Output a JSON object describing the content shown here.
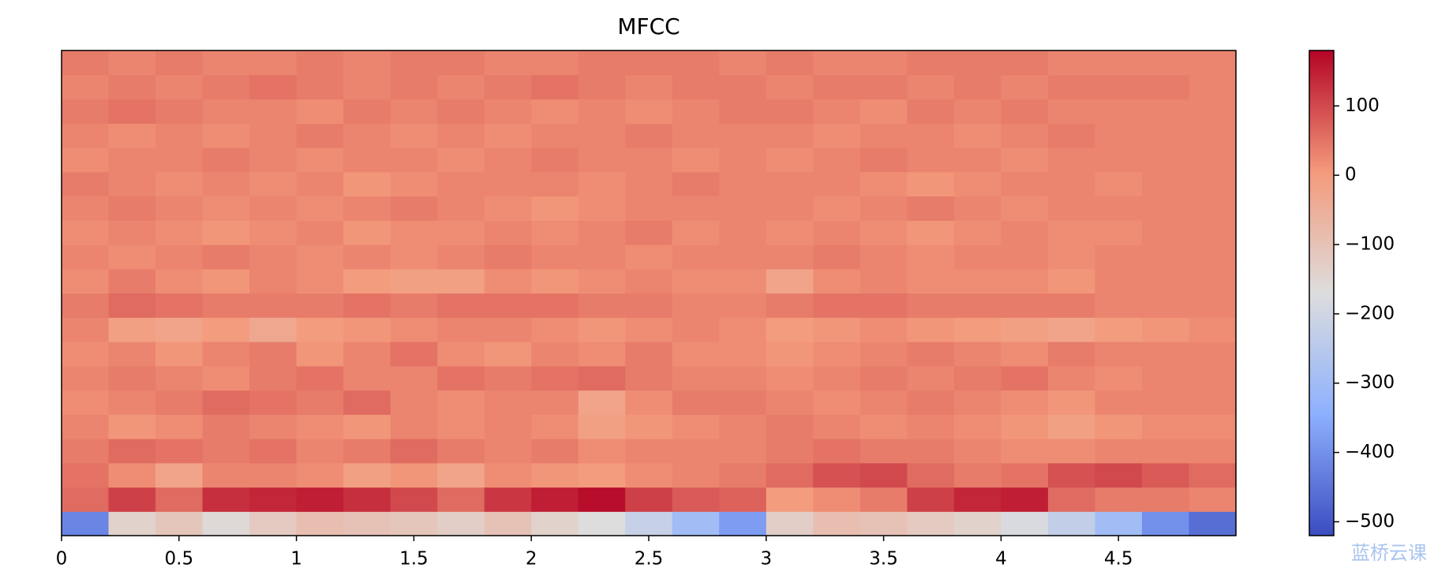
{
  "chart_data": {
    "type": "heatmap",
    "title": "MFCC",
    "colormap": "coolwarm",
    "xlim": [
      0,
      5
    ],
    "xticks": [
      0,
      0.5,
      1,
      1.5,
      2,
      2.5,
      3,
      3.5,
      4,
      4.5
    ],
    "clim": [
      -520,
      180
    ],
    "cticks": [
      {
        "value": -500,
        "label": "−500"
      },
      {
        "value": -400,
        "label": "−400"
      },
      {
        "value": -300,
        "label": "−300"
      },
      {
        "value": -200,
        "label": "−200"
      },
      {
        "value": -100,
        "label": "−100"
      },
      0,
      100
    ],
    "watermark": "蓝桥云课",
    "z": [
      [
        -420,
        -140,
        -110,
        -160,
        -120,
        -90,
        -100,
        -110,
        -130,
        -100,
        -140,
        -170,
        -220,
        -300,
        -380,
        -130,
        -90,
        -100,
        -120,
        -140,
        -180,
        -230,
        -300,
        -400,
        -460
      ],
      [
        60,
        110,
        60,
        130,
        140,
        150,
        130,
        100,
        60,
        120,
        150,
        170,
        110,
        80,
        70,
        0,
        20,
        40,
        110,
        140,
        150,
        60,
        40,
        40,
        30
      ],
      [
        50,
        20,
        -20,
        30,
        30,
        20,
        -10,
        10,
        -20,
        20,
        10,
        0,
        20,
        30,
        40,
        60,
        90,
        100,
        60,
        40,
        50,
        90,
        100,
        80,
        60
      ],
      [
        40,
        60,
        50,
        40,
        50,
        30,
        40,
        60,
        40,
        30,
        40,
        20,
        30,
        30,
        30,
        40,
        50,
        40,
        40,
        30,
        20,
        20,
        30,
        30,
        30
      ],
      [
        30,
        10,
        20,
        40,
        30,
        20,
        10,
        30,
        20,
        30,
        20,
        -10,
        10,
        20,
        30,
        40,
        30,
        20,
        30,
        20,
        10,
        -10,
        10,
        20,
        20
      ],
      [
        20,
        30,
        40,
        60,
        50,
        40,
        60,
        30,
        20,
        30,
        30,
        -20,
        20,
        40,
        40,
        30,
        20,
        30,
        40,
        30,
        20,
        10,
        30,
        30,
        30
      ],
      [
        30,
        40,
        30,
        20,
        40,
        50,
        30,
        30,
        50,
        40,
        50,
        60,
        40,
        30,
        30,
        20,
        30,
        40,
        30,
        40,
        50,
        30,
        20,
        30,
        30
      ],
      [
        20,
        30,
        10,
        30,
        40,
        10,
        30,
        50,
        20,
        10,
        30,
        20,
        40,
        20,
        20,
        10,
        20,
        30,
        40,
        30,
        20,
        40,
        30,
        30,
        30
      ],
      [
        30,
        -10,
        -20,
        0,
        -30,
        0,
        10,
        20,
        30,
        30,
        20,
        10,
        20,
        30,
        20,
        0,
        10,
        20,
        10,
        0,
        -10,
        -20,
        0,
        10,
        20
      ],
      [
        40,
        60,
        50,
        40,
        40,
        40,
        50,
        40,
        50,
        50,
        50,
        40,
        40,
        30,
        30,
        40,
        50,
        50,
        40,
        40,
        40,
        40,
        30,
        30,
        30
      ],
      [
        20,
        40,
        20,
        10,
        30,
        20,
        0,
        -10,
        -10,
        20,
        10,
        20,
        30,
        20,
        20,
        -20,
        20,
        30,
        20,
        20,
        20,
        10,
        30,
        30,
        30
      ],
      [
        30,
        20,
        30,
        40,
        30,
        20,
        30,
        20,
        30,
        40,
        30,
        30,
        20,
        30,
        30,
        30,
        40,
        30,
        20,
        30,
        30,
        20,
        30,
        30,
        30
      ],
      [
        20,
        30,
        20,
        10,
        20,
        30,
        10,
        20,
        20,
        30,
        20,
        30,
        40,
        20,
        30,
        20,
        30,
        20,
        10,
        20,
        30,
        20,
        20,
        30,
        30
      ],
      [
        30,
        40,
        30,
        20,
        30,
        20,
        30,
        40,
        30,
        20,
        10,
        20,
        30,
        30,
        30,
        30,
        20,
        30,
        40,
        30,
        20,
        30,
        30,
        30,
        30
      ],
      [
        40,
        30,
        20,
        30,
        20,
        30,
        10,
        20,
        30,
        30,
        30,
        20,
        30,
        40,
        30,
        30,
        30,
        20,
        10,
        20,
        30,
        30,
        20,
        30,
        30
      ],
      [
        20,
        30,
        30,
        40,
        30,
        20,
        30,
        30,
        20,
        30,
        40,
        30,
        30,
        20,
        30,
        20,
        30,
        40,
        30,
        30,
        20,
        30,
        30,
        30,
        30
      ],
      [
        30,
        20,
        30,
        20,
        30,
        40,
        30,
        20,
        30,
        20,
        30,
        30,
        40,
        30,
        30,
        30,
        20,
        30,
        30,
        20,
        30,
        40,
        30,
        30,
        30
      ],
      [
        40,
        50,
        40,
        30,
        30,
        20,
        40,
        30,
        40,
        30,
        20,
        30,
        20,
        30,
        40,
        40,
        30,
        20,
        40,
        30,
        40,
        30,
        30,
        30,
        30
      ],
      [
        30,
        40,
        30,
        40,
        50,
        40,
        30,
        40,
        30,
        40,
        50,
        40,
        30,
        40,
        40,
        30,
        40,
        40,
        30,
        40,
        30,
        40,
        40,
        40,
        30
      ],
      [
        40,
        30,
        40,
        30,
        30,
        40,
        30,
        40,
        40,
        30,
        30,
        40,
        40,
        40,
        30,
        40,
        30,
        30,
        40,
        40,
        40,
        30,
        30,
        30,
        30
      ]
    ]
  }
}
